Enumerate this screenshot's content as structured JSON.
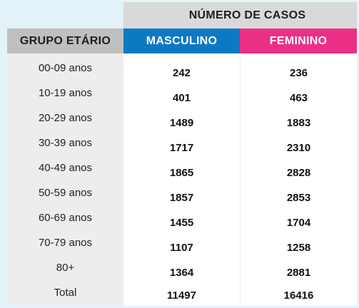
{
  "header": {
    "top": "NÚMERO DE CASOS",
    "group": "GRUPO ETÁRIO",
    "male": "MASCULINO",
    "female": "FEMININO"
  },
  "colors": {
    "background": "#e4f3f9",
    "top_header_bg": "#d9d9d9",
    "group_header_bg": "#bfbfbf",
    "male_header_bg": "#0e79c3",
    "female_header_bg": "#ec2f86",
    "label_column_bg": "#ededed"
  },
  "rows": [
    {
      "group": "00-09 anos",
      "male": "242",
      "female": "236"
    },
    {
      "group": "10-19 anos",
      "male": "401",
      "female": "463"
    },
    {
      "group": "20-29 anos",
      "male": "1489",
      "female": "1883"
    },
    {
      "group": "30-39 anos",
      "male": "1717",
      "female": "2310"
    },
    {
      "group": "40-49 anos",
      "male": "1865",
      "female": "2828"
    },
    {
      "group": "50-59 anos",
      "male": "1857",
      "female": "2853"
    },
    {
      "group": "60-69 anos",
      "male": "1455",
      "female": "1704"
    },
    {
      "group": "70-79 anos",
      "male": "1107",
      "female": "1258"
    },
    {
      "group": "80+",
      "male": "1364",
      "female": "2881"
    },
    {
      "group": "Total",
      "male": "11497",
      "female": "16416"
    }
  ]
}
